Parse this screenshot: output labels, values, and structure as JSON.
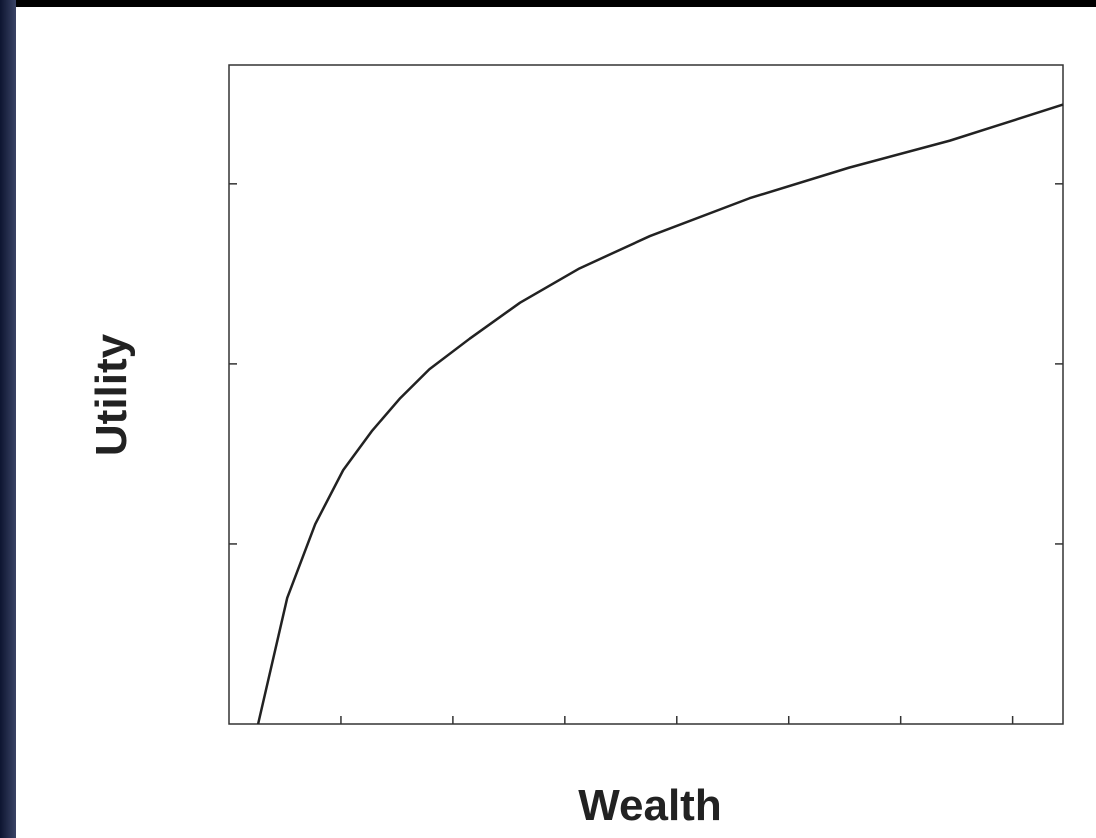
{
  "chart_data": {
    "type": "line",
    "x_label": "Wealth",
    "y_label": "Utility",
    "x": [
      0.26,
      0.52,
      0.77,
      1.02,
      1.28,
      1.53,
      1.79,
      2.15,
      2.6,
      3.13,
      3.76,
      4.65,
      5.54,
      6.44,
      7.45
    ],
    "series": [
      {
        "color": "#222222",
        "values": [
          0,
          0.7,
          1.11,
          1.41,
          1.63,
          1.81,
          1.97,
          2.14,
          2.34,
          2.53,
          2.71,
          2.92,
          3.09,
          3.24,
          3.44
        ]
      }
    ],
    "xlim": [
      0,
      7.45
    ],
    "ylim": [
      0,
      3.66
    ],
    "xticks": [
      1,
      2,
      3,
      4,
      5,
      6,
      7
    ],
    "yticks": [
      1,
      2,
      3
    ],
    "grid": false
  }
}
